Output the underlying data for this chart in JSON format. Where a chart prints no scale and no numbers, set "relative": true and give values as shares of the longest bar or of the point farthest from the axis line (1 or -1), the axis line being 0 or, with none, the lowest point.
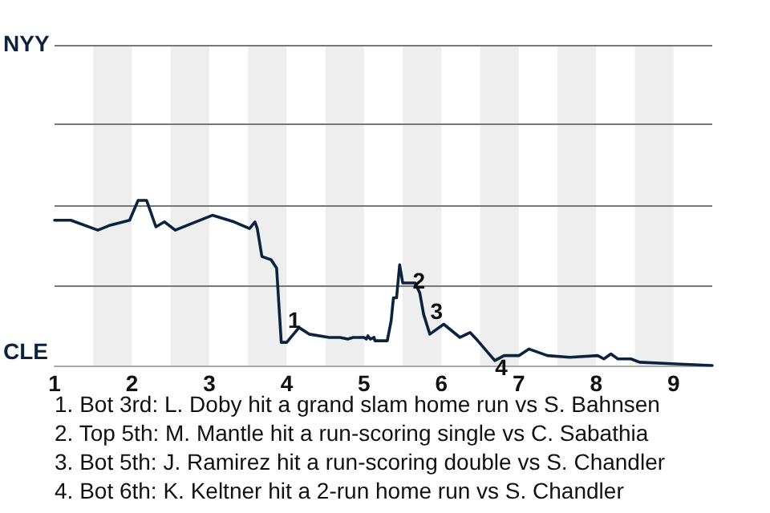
{
  "chart_data": {
    "type": "line",
    "relative": true,
    "x": [
      1,
      1.21,
      1.56,
      1.72,
      1.97,
      2.08,
      2.19,
      2.31,
      2.42,
      2.56,
      2.72,
      3.04,
      3.32,
      3.52,
      3.59,
      3.62,
      3.68,
      3.8,
      3.87,
      3.93,
      4,
      4.16,
      4.29,
      4.55,
      4.69,
      4.79,
      4.86,
      5,
      5.03,
      5.05,
      5.08,
      5.13,
      5.14,
      5.3,
      5.35,
      5.38,
      5.42,
      5.46,
      5.5,
      5.57,
      5.66,
      5.67,
      5.72,
      5.77,
      5.85,
      6.03,
      6.24,
      6.37,
      6.47,
      6.69,
      6.81,
      7,
      7.13,
      7.37,
      7.66,
      8.02,
      8.1,
      8.19,
      8.28,
      8.45,
      8.56,
      9.03,
      9.5
    ],
    "series": [
      {
        "color": "#0c2340",
        "values": [
          0.88,
          0.88,
          0.82,
          0.85,
          0.88,
          1,
          1,
          0.84,
          0.87,
          0.82,
          0.85,
          0.91,
          0.87,
          0.83,
          0.87,
          0.83,
          0.66,
          0.64,
          0.59,
          0.14,
          0.14,
          0.23,
          0.19,
          0.17,
          0.17,
          0.16,
          0.17,
          0.17,
          0.16,
          0.18,
          0.16,
          0.17,
          0.15,
          0.15,
          0.27,
          0.41,
          0.41,
          0.61,
          0.5,
          0.5,
          0.5,
          0.5,
          0.44,
          0.31,
          0.19,
          0.25,
          0.17,
          0.2,
          0.15,
          0.03,
          0.06,
          0.06,
          0.1,
          0.06,
          0.05,
          0.06,
          0.04,
          0.07,
          0.04,
          0.04,
          0.02,
          0.01,
          0
        ]
      }
    ],
    "xlim": [
      1,
      9.5
    ],
    "xticks": [
      1,
      2,
      3,
      4,
      5,
      6,
      7,
      8,
      9
    ],
    "marker": "none",
    "line_style": "solid",
    "ref_lines": [
      {
        "axis": "y",
        "value": 0.485,
        "color": "#777777"
      },
      {
        "axis": "y",
        "value": 0.971,
        "color": "#777777"
      },
      {
        "axis": "y",
        "value": 1.456,
        "color": "#777777"
      },
      {
        "axis": "y",
        "value": 1.942,
        "color": "#777777"
      }
    ],
    "bands": [
      {
        "axis": "x",
        "from": 1.5,
        "to": 2,
        "color": "#eeeeee"
      },
      {
        "axis": "x",
        "from": 2.5,
        "to": 3,
        "color": "#eeeeee"
      },
      {
        "axis": "x",
        "from": 3.5,
        "to": 4,
        "color": "#eeeeee"
      },
      {
        "axis": "x",
        "from": 4.5,
        "to": 5,
        "color": "#eeeeee"
      },
      {
        "axis": "x",
        "from": 5.5,
        "to": 6,
        "color": "#eeeeee"
      },
      {
        "axis": "x",
        "from": 6.5,
        "to": 7,
        "color": "#eeeeee"
      },
      {
        "axis": "x",
        "from": 7.5,
        "to": 8,
        "color": "#eeeeee"
      },
      {
        "axis": "x",
        "from": 8.5,
        "to": 9,
        "color": "#eeeeee"
      }
    ],
    "annotations": [
      "NYY",
      "CLE",
      {
        "text": "1",
        "x": 3.93,
        "y": 0.14
      },
      {
        "text": "2",
        "x": 5.46,
        "y": 0.61
      },
      {
        "text": "3",
        "x": 5.77,
        "y": 0.31
      },
      {
        "text": "4",
        "x": 6.69,
        "y": 0.03
      },
      "1. Bot 3rd: L. Doby hit a grand slam home run vs S. Bahnsen",
      "2. Top 5th: M. Mantle hit a run-scoring single vs C. Sabathia",
      "3. Bot 5th: J. Ramirez hit a run-scoring double vs S. Chandler",
      "4. Bot 6th: K. Keltner hit a 2-run home run vs S. Chandler"
    ]
  }
}
